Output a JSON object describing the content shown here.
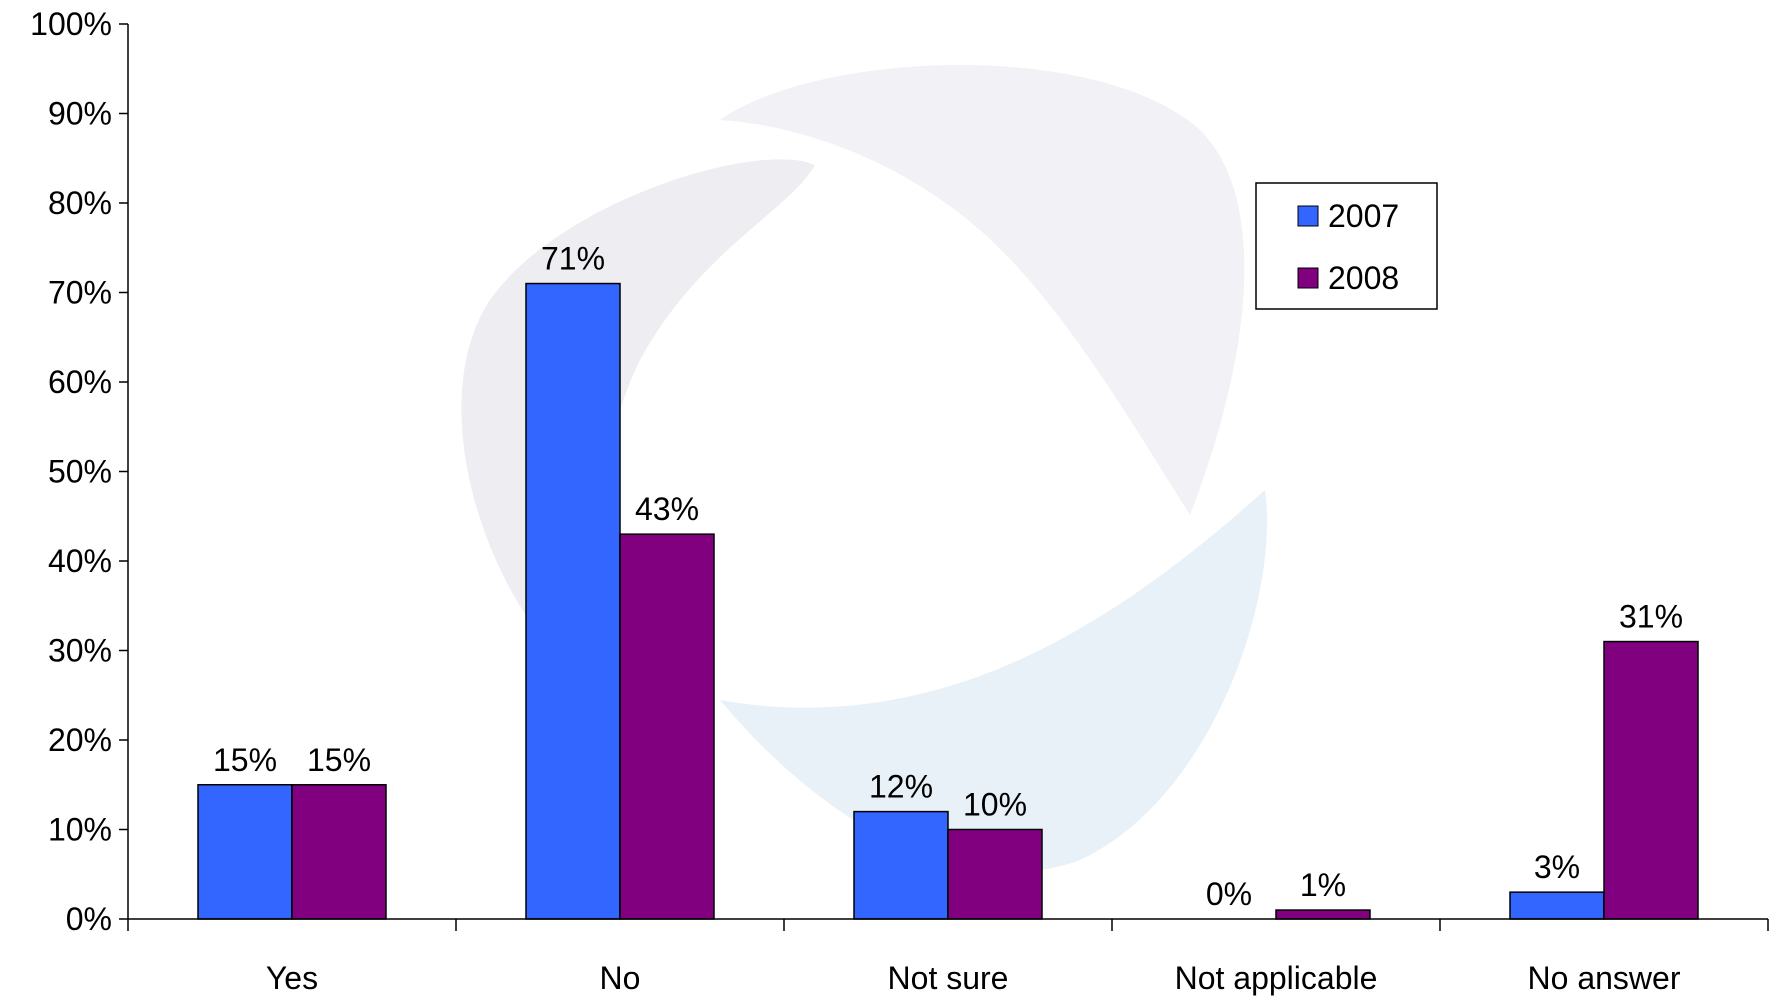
{
  "chart_data": {
    "type": "bar",
    "title": "",
    "xlabel": "",
    "ylabel": "",
    "categories": [
      "Yes",
      "No",
      "Not sure",
      "Not applicable",
      "No answer"
    ],
    "series": [
      {
        "name": "2007",
        "values": [
          15,
          71,
          12,
          0,
          3
        ],
        "labels": [
          "15%",
          "71%",
          "12%",
          "0%",
          "3%"
        ]
      },
      {
        "name": "2008",
        "values": [
          15,
          43,
          10,
          1,
          31
        ],
        "labels": [
          "15%",
          "43%",
          "10%",
          "1%",
          "31%"
        ]
      }
    ],
    "ylim": [
      0,
      100
    ],
    "yticks": [
      0,
      10,
      20,
      30,
      40,
      50,
      60,
      70,
      80,
      90,
      100
    ],
    "ytick_labels": [
      "0%",
      "10%",
      "20%",
      "30%",
      "40%",
      "50%",
      "60%",
      "70%",
      "80%",
      "90%",
      "100%"
    ],
    "grid": false,
    "legend_position": "top-right",
    "colors": {
      "2007": "#3366ff",
      "2008": "#800080",
      "axis": "#000000",
      "watermark": "#e8e8f0"
    }
  }
}
